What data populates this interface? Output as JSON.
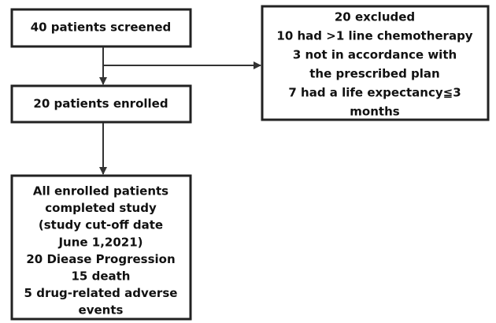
{
  "nodes": [
    {
      "lines": [
        "40 patients screened"
      ]
    },
    {
      "lines": [
        "20 excluded",
        "10 had >1 line chemotherapy",
        "3 not in accordance with",
        "the prescribed plan",
        "7 had a life expectancy≦3",
        "months"
      ]
    },
    {
      "lines": [
        "20 patients enrolled"
      ]
    },
    {
      "lines": [
        "All enrolled patients",
        "completed study",
        "(study cut-off date",
        "June 1,2021)",
        "20 Diease Progression",
        "15 death",
        "5 drug-related adverse",
        "events"
      ]
    }
  ]
}
